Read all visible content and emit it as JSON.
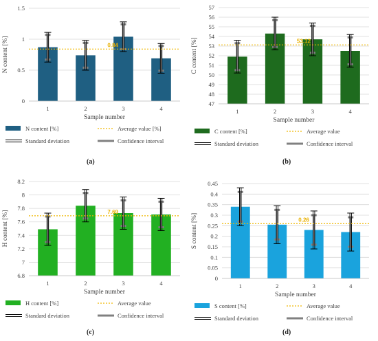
{
  "chart_data": [
    {
      "type": "bar",
      "panel_label": "(a)",
      "categories": [
        "1",
        "2",
        "3",
        "4"
      ],
      "series": [
        {
          "name": "N content [%]",
          "values": [
            0.87,
            0.74,
            1.04,
            0.69
          ]
        }
      ],
      "error_sd": [
        0.24,
        0.24,
        0.24,
        0.24
      ],
      "error_ci": [
        0.2,
        0.2,
        0.2,
        0.2
      ],
      "average": 0.84,
      "average_label": "0.84",
      "xlabel": "Sample number",
      "ylabel": "N content [%]",
      "ylim": [
        0,
        1.5
      ],
      "yticks": [
        "0",
        "0.5",
        "1",
        "1.5"
      ],
      "ytick_values": [
        0,
        0.5,
        1,
        1.5
      ],
      "color": "#1F5F82",
      "legend": [
        "N content [%]",
        "Average value [%]",
        "Standard deviation",
        "Confidence interval"
      ]
    },
    {
      "type": "bar",
      "panel_label": "(b)",
      "categories": [
        "1",
        "2",
        "3",
        "4"
      ],
      "series": [
        {
          "name": "C content [%]",
          "values": [
            51.9,
            54.3,
            53.7,
            52.5
          ]
        }
      ],
      "error_sd": [
        1.7,
        1.7,
        1.7,
        1.7
      ],
      "error_ci": [
        1.4,
        1.4,
        1.4,
        1.4
      ],
      "average": 53.12,
      "average_label": "53.12",
      "xlabel": "Sample number",
      "ylabel": "C content [%]",
      "ylim": [
        47,
        57
      ],
      "yticks": [
        "47",
        "48",
        "49",
        "50",
        "51",
        "52",
        "53",
        "54",
        "55",
        "56",
        "57"
      ],
      "ytick_values": [
        47,
        48,
        49,
        50,
        51,
        52,
        53,
        54,
        55,
        56,
        57
      ],
      "color": "#1E6B1E",
      "legend": [
        "C content [%]",
        "Average value",
        "Standard deviation",
        "Confidence interval"
      ]
    },
    {
      "type": "bar",
      "panel_label": "(c)",
      "categories": [
        "1",
        "2",
        "3",
        "4"
      ],
      "series": [
        {
          "name": "H content [%]",
          "values": [
            7.49,
            7.84,
            7.73,
            7.71
          ]
        }
      ],
      "error_sd": [
        0.24,
        0.24,
        0.24,
        0.24
      ],
      "error_ci": [
        0.19,
        0.19,
        0.19,
        0.19
      ],
      "average": 7.69,
      "average_label": "7.69",
      "xlabel": "Sample number",
      "ylabel": "H content [%]",
      "ylim": [
        6.8,
        8.2
      ],
      "yticks": [
        "6.8",
        "7",
        "7.2",
        "7.4",
        "7.6",
        "7.8",
        "8",
        "8.2"
      ],
      "ytick_values": [
        6.8,
        7,
        7.2,
        7.4,
        7.6,
        7.8,
        8,
        8.2
      ],
      "color": "#22B022",
      "legend": [
        "H content [%]",
        "Average value",
        "Standard deviation",
        "Confidence interval"
      ]
    },
    {
      "type": "bar",
      "panel_label": "(d)",
      "categories": [
        "1",
        "2",
        "3",
        "4"
      ],
      "series": [
        {
          "name": "S content [%]",
          "values": [
            0.34,
            0.255,
            0.23,
            0.22
          ]
        }
      ],
      "error_sd": [
        0.09,
        0.09,
        0.09,
        0.09
      ],
      "error_ci": [
        0.07,
        0.07,
        0.07,
        0.07
      ],
      "average": 0.26,
      "average_label": "0.26",
      "xlabel": "Sample number",
      "ylabel": "S content [%]",
      "ylim": [
        0,
        0.45
      ],
      "yticks": [
        "0",
        "0.05",
        "0.1",
        "0.15",
        "0.2",
        "0.25",
        "0.3",
        "0.35",
        "0.4",
        "0.45"
      ],
      "ytick_values": [
        0,
        0.05,
        0.1,
        0.15,
        0.2,
        0.25,
        0.3,
        0.35,
        0.4,
        0.45
      ],
      "color": "#1AA3DD",
      "legend": [
        "S content [%]",
        "Average value",
        "Standard deviation",
        "Confidence interval"
      ]
    }
  ],
  "colors": {
    "average_line": "#F0B800",
    "sd_line": "#000000",
    "ci_line": "#808080"
  }
}
